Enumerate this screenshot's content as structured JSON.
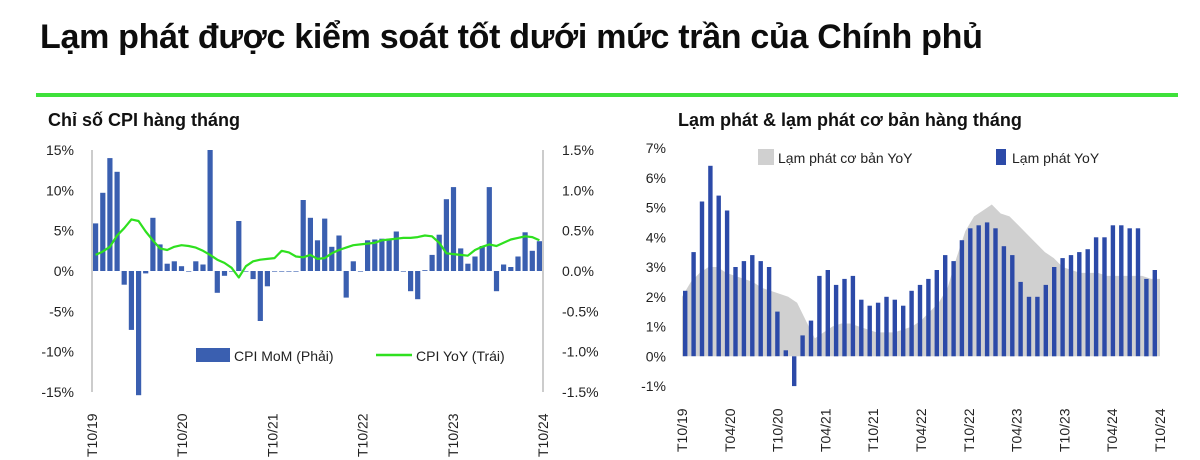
{
  "page": {
    "title": "Lạm phát được kiểm soát tốt dưới mức trần của Chính phủ",
    "accent_color": "#3ee13a"
  },
  "chart_data": [
    {
      "type": "bar",
      "title": "Chỉ số CPI hàng tháng",
      "left_axis": {
        "ticks": [
          "15%",
          "10%",
          "5%",
          "0%",
          "-5%",
          "-10%",
          "-15%"
        ],
        "ylim": [
          -15,
          15
        ]
      },
      "right_axis": {
        "ticks": [
          "1.5%",
          "1.0%",
          "0.5%",
          "0.0%",
          "-0.5%",
          "-1.0%",
          "-1.5%"
        ],
        "ylim": [
          -1.5,
          1.5
        ]
      },
      "x_tick_labels": [
        "T10/19",
        "T10/20",
        "T10/21",
        "T10/22",
        "T10/23",
        "T10/24"
      ],
      "legend_position": "bottom-right",
      "series": [
        {
          "name": "CPI MoM  (Phải)",
          "type": "bar",
          "axis": "right",
          "color": "#3a5fb0",
          "values": [
            0.59,
            0.97,
            1.4,
            1.23,
            -0.17,
            -0.73,
            -1.54,
            -0.03,
            0.66,
            0.33,
            0.09,
            0.12,
            0.06,
            0.0,
            0.12,
            0.08,
            1.5,
            -0.27,
            -0.06,
            0.0,
            0.62,
            0.0,
            -0.1,
            -0.62,
            -0.19,
            0.0,
            0.0,
            0.0,
            0.0,
            0.88,
            0.66,
            0.38,
            0.65,
            0.3,
            0.44,
            -0.33,
            0.12,
            0.0,
            0.38,
            0.39,
            0.4,
            0.4,
            0.49,
            0.0,
            -0.25,
            -0.35,
            0.01,
            0.2,
            0.45,
            0.89,
            1.04,
            0.28,
            0.09,
            0.18,
            0.31,
            1.04,
            -0.25,
            0.08,
            0.05,
            0.18,
            0.48,
            0.25,
            0.37
          ]
        },
        {
          "name": "CPI YoY (Trái)",
          "type": "line",
          "axis": "left",
          "color": "#2fe01f",
          "values": [
            2.0,
            2.4,
            3.0,
            4.4,
            5.3,
            6.4,
            6.2,
            4.9,
            3.8,
            2.8,
            2.6,
            3.0,
            3.2,
            3.1,
            2.9,
            2.5,
            2.0,
            1.4,
            1.0,
            0.4,
            -0.8,
            0.6,
            1.2,
            1.4,
            1.5,
            1.6,
            2.5,
            2.3,
            1.8,
            1.7,
            2.0,
            1.5,
            1.6,
            2.2,
            2.6,
            2.9,
            3.2,
            3.3,
            3.4,
            3.5,
            3.8,
            3.9,
            4.0,
            4.1,
            4.1,
            4.2,
            4.4,
            4.3,
            3.5,
            2.2,
            2.1,
            2.0,
            1.9,
            2.6,
            3.0,
            3.3,
            3.1,
            3.5,
            3.9,
            4.1,
            4.3,
            4.2,
            3.8
          ]
        }
      ]
    },
    {
      "type": "bar",
      "title": "Lạm phát & lạm phát cơ bản hàng tháng",
      "y_ticks": [
        "7%",
        "6%",
        "5%",
        "4%",
        "3%",
        "2%",
        "1%",
        "0%",
        "-1%"
      ],
      "ylim": [
        -1,
        7
      ],
      "x_tick_labels": [
        "T10/19",
        "T04/20",
        "T10/20",
        "T04/21",
        "T10/21",
        "T04/22",
        "T10/22",
        "T04/23",
        "T10/23",
        "T04/24",
        "T10/24"
      ],
      "legend_position": "top",
      "series": [
        {
          "name": "Lạm phát cơ bản YoY",
          "type": "area",
          "color": "#d0d0d0",
          "values": [
            2.0,
            2.5,
            2.8,
            3.0,
            3.0,
            2.8,
            2.7,
            2.6,
            2.5,
            2.3,
            2.2,
            2.1,
            2.0,
            1.8,
            1.2,
            0.6,
            0.8,
            1.0,
            1.1,
            1.1,
            1.0,
            0.9,
            0.8,
            0.8,
            0.8,
            0.9,
            1.0,
            1.2,
            1.5,
            1.8,
            2.3,
            3.3,
            4.2,
            4.7,
            4.9,
            5.1,
            4.8,
            4.7,
            4.4,
            4.1,
            3.8,
            3.5,
            3.3,
            3.0,
            2.9,
            2.8,
            2.8,
            2.8,
            2.7,
            2.7,
            2.7,
            2.7,
            2.7,
            2.6,
            2.6
          ]
        },
        {
          "name": "Lạm phát YoY",
          "type": "bar",
          "color": "#2c4aa8",
          "values": [
            2.2,
            3.5,
            5.2,
            6.4,
            5.4,
            4.9,
            3.0,
            3.2,
            3.4,
            3.2,
            3.0,
            1.5,
            0.2,
            -1.0,
            0.7,
            1.2,
            2.7,
            2.9,
            2.4,
            2.6,
            2.7,
            1.9,
            1.7,
            1.8,
            2.0,
            1.9,
            1.7,
            2.2,
            2.4,
            2.6,
            2.9,
            3.4,
            3.2,
            3.9,
            4.3,
            4.4,
            4.5,
            4.3,
            3.7,
            3.4,
            2.5,
            2.0,
            2.0,
            2.4,
            3.0,
            3.3,
            3.4,
            3.5,
            3.6,
            4.0,
            4.0,
            4.4,
            4.4,
            4.3,
            4.3,
            2.6,
            2.9
          ]
        }
      ]
    }
  ]
}
